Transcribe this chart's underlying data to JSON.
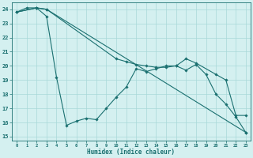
{
  "title": "",
  "xlabel": "Humidex (Indice chaleur)",
  "ylabel": "",
  "background_color": "#d4f0f0",
  "line_color": "#1a7070",
  "grid_color": "#a8d8d8",
  "xlim": [
    -0.5,
    23.5
  ],
  "ylim": [
    14.7,
    24.5
  ],
  "xticks": [
    0,
    1,
    2,
    3,
    4,
    5,
    6,
    7,
    8,
    9,
    10,
    11,
    12,
    13,
    14,
    15,
    16,
    17,
    18,
    19,
    20,
    21,
    22,
    23
  ],
  "yticks": [
    15,
    16,
    17,
    18,
    19,
    20,
    21,
    22,
    23,
    24
  ],
  "lines": [
    {
      "x": [
        0,
        1,
        2,
        3,
        4,
        5,
        6,
        7,
        8,
        9,
        10,
        11,
        12,
        13,
        14,
        15,
        16,
        17,
        18,
        19,
        20,
        21,
        22,
        23
      ],
      "y": [
        23.8,
        24.1,
        24.1,
        23.5,
        19.2,
        15.8,
        16.1,
        16.3,
        16.2,
        17.0,
        17.8,
        18.5,
        19.8,
        19.6,
        19.8,
        20.0,
        20.0,
        19.7,
        20.1,
        19.4,
        18.0,
        17.3,
        16.4,
        15.3
      ]
    },
    {
      "x": [
        0,
        2,
        3,
        10,
        11,
        12,
        13,
        14,
        15,
        16,
        17,
        18,
        20,
        21,
        22,
        23
      ],
      "y": [
        23.8,
        24.1,
        24.0,
        20.5,
        20.3,
        20.1,
        20.0,
        19.9,
        19.9,
        20.0,
        20.5,
        20.2,
        19.4,
        19.0,
        16.5,
        16.5
      ]
    },
    {
      "x": [
        0,
        2,
        3,
        23
      ],
      "y": [
        23.8,
        24.1,
        24.0,
        15.3
      ]
    }
  ]
}
